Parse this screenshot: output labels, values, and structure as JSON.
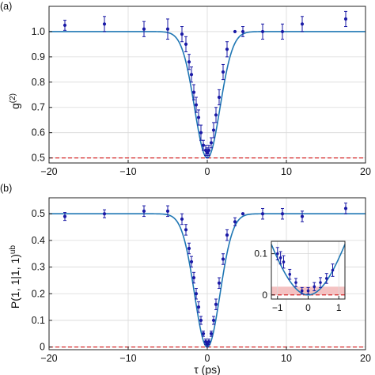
{
  "chart_data": [
    {
      "panel_label": "(a)",
      "type": "scatter",
      "ylabel": "g",
      "ylabel_superscript": "(2)",
      "xlim": [
        -20,
        20
      ],
      "ylim": [
        0.48,
        1.1
      ],
      "xticks": [
        -20,
        -10,
        0,
        10,
        20
      ],
      "yticks": [
        0.5,
        0.6,
        0.7,
        0.8,
        0.9,
        1.0
      ],
      "ytick_labels": [
        "0.5",
        "0.6",
        "0.7",
        "0.8",
        "0.9",
        "1.0"
      ],
      "grid": true,
      "reference_line": {
        "y": 0.5,
        "color": "#d62728",
        "style": "dashed"
      },
      "fit_curve": {
        "baseline": 1.0,
        "minimum": 0.5,
        "width_ps": 1.6,
        "color": "#1f77b4"
      },
      "points": [
        {
          "x": -18.0,
          "y": 1.025,
          "err": 0.02
        },
        {
          "x": -13.0,
          "y": 1.03,
          "err": 0.03
        },
        {
          "x": -8.0,
          "y": 1.01,
          "err": 0.03
        },
        {
          "x": -5.0,
          "y": 1.01,
          "err": 0.04
        },
        {
          "x": -3.2,
          "y": 0.99,
          "err": 0.03
        },
        {
          "x": -2.7,
          "y": 0.95,
          "err": 0.03
        },
        {
          "x": -2.3,
          "y": 0.88,
          "err": 0.03
        },
        {
          "x": -2.0,
          "y": 0.83,
          "err": 0.03
        },
        {
          "x": -1.7,
          "y": 0.76,
          "err": 0.03
        },
        {
          "x": -1.4,
          "y": 0.71,
          "err": 0.03
        },
        {
          "x": -1.1,
          "y": 0.66,
          "err": 0.03
        },
        {
          "x": -0.8,
          "y": 0.6,
          "err": 0.03
        },
        {
          "x": -0.5,
          "y": 0.55,
          "err": 0.02
        },
        {
          "x": -0.2,
          "y": 0.53,
          "err": 0.02
        },
        {
          "x": 0.0,
          "y": 0.52,
          "err": 0.02
        },
        {
          "x": 0.2,
          "y": 0.53,
          "err": 0.02
        },
        {
          "x": 0.5,
          "y": 0.56,
          "err": 0.02
        },
        {
          "x": 0.8,
          "y": 0.61,
          "err": 0.03
        },
        {
          "x": 1.1,
          "y": 0.67,
          "err": 0.03
        },
        {
          "x": 1.5,
          "y": 0.74,
          "err": 0.03
        },
        {
          "x": 2.0,
          "y": 0.84,
          "err": 0.03
        },
        {
          "x": 2.5,
          "y": 0.93,
          "err": 0.03
        },
        {
          "x": 3.5,
          "y": 1.0,
          "err": 0.0
        },
        {
          "x": 4.5,
          "y": 1.0,
          "err": 0.02
        },
        {
          "x": 7.0,
          "y": 1.0,
          "err": 0.03
        },
        {
          "x": 9.5,
          "y": 1.0,
          "err": 0.03
        },
        {
          "x": 12.0,
          "y": 1.03,
          "err": 0.03
        },
        {
          "x": 17.5,
          "y": 1.05,
          "err": 0.03
        }
      ]
    },
    {
      "panel_label": "(b)",
      "type": "scatter",
      "ylabel": "P(1, 1|1, 1)",
      "ylabel_superscript": "ub",
      "xlabel": "τ (ps)",
      "xlim": [
        -20,
        20
      ],
      "ylim": [
        -0.01,
        0.56
      ],
      "xticks": [
        -20,
        -10,
        0,
        10,
        20
      ],
      "yticks": [
        0,
        0.1,
        0.2,
        0.3,
        0.4,
        0.5
      ],
      "ytick_labels": [
        "0",
        "0.1",
        "0.2",
        "0.3",
        "0.4",
        "0.5"
      ],
      "grid": true,
      "reference_line": {
        "y": 0.0,
        "color": "#d62728",
        "style": "dashed"
      },
      "fit_curve": {
        "baseline": 0.5,
        "minimum": 0.0,
        "width_ps": 1.6,
        "color": "#1f77b4"
      },
      "points": [
        {
          "x": -18.0,
          "y": 0.49,
          "err": 0.015
        },
        {
          "x": -13.0,
          "y": 0.5,
          "err": 0.015
        },
        {
          "x": -8.0,
          "y": 0.51,
          "err": 0.02
        },
        {
          "x": -5.0,
          "y": 0.51,
          "err": 0.02
        },
        {
          "x": -3.2,
          "y": 0.48,
          "err": 0.02
        },
        {
          "x": -2.7,
          "y": 0.44,
          "err": 0.02
        },
        {
          "x": -2.3,
          "y": 0.37,
          "err": 0.02
        },
        {
          "x": -2.0,
          "y": 0.32,
          "err": 0.02
        },
        {
          "x": -1.7,
          "y": 0.26,
          "err": 0.02
        },
        {
          "x": -1.4,
          "y": 0.2,
          "err": 0.02
        },
        {
          "x": -1.1,
          "y": 0.15,
          "err": 0.02
        },
        {
          "x": -0.8,
          "y": 0.1,
          "err": 0.015
        },
        {
          "x": -0.5,
          "y": 0.05,
          "err": 0.01
        },
        {
          "x": -0.2,
          "y": 0.02,
          "err": 0.01
        },
        {
          "x": 0.0,
          "y": 0.01,
          "err": 0.01
        },
        {
          "x": 0.2,
          "y": 0.02,
          "err": 0.01
        },
        {
          "x": 0.5,
          "y": 0.05,
          "err": 0.01
        },
        {
          "x": 0.8,
          "y": 0.1,
          "err": 0.015
        },
        {
          "x": 1.1,
          "y": 0.16,
          "err": 0.02
        },
        {
          "x": 1.5,
          "y": 0.24,
          "err": 0.02
        },
        {
          "x": 2.0,
          "y": 0.33,
          "err": 0.02
        },
        {
          "x": 2.5,
          "y": 0.42,
          "err": 0.02
        },
        {
          "x": 3.5,
          "y": 0.47,
          "err": 0.015
        },
        {
          "x": 4.5,
          "y": 0.5,
          "err": 0.0
        },
        {
          "x": 7.0,
          "y": 0.5,
          "err": 0.02
        },
        {
          "x": 9.5,
          "y": 0.5,
          "err": 0.02
        },
        {
          "x": 12.0,
          "y": 0.49,
          "err": 0.02
        },
        {
          "x": 17.5,
          "y": 0.52,
          "err": 0.02
        }
      ],
      "inset": {
        "xlim": [
          -1.2,
          1.2
        ],
        "ylim": [
          -0.01,
          0.13
        ],
        "xticks": [
          -1,
          0,
          1
        ],
        "yticks": [
          0,
          0.1
        ],
        "ytick_labels": [
          "0",
          "0.1"
        ],
        "band": {
          "y0": 0.0,
          "y1": 0.02,
          "color": "#f4c2c2"
        },
        "reference_line": {
          "y": 0.0,
          "color": "#d62728",
          "style": "dashed"
        },
        "points": [
          {
            "x": -1.0,
            "y": 0.1,
            "err": 0.015
          },
          {
            "x": -0.9,
            "y": 0.09,
            "err": 0.015
          },
          {
            "x": -0.8,
            "y": 0.08,
            "err": 0.015
          },
          {
            "x": -0.6,
            "y": 0.05,
            "err": 0.012
          },
          {
            "x": -0.4,
            "y": 0.03,
            "err": 0.01
          },
          {
            "x": -0.2,
            "y": 0.01,
            "err": 0.008
          },
          {
            "x": 0.0,
            "y": 0.01,
            "err": 0.008
          },
          {
            "x": 0.2,
            "y": 0.02,
            "err": 0.01
          },
          {
            "x": 0.4,
            "y": 0.03,
            "err": 0.012
          },
          {
            "x": 0.6,
            "y": 0.04,
            "err": 0.012
          },
          {
            "x": 0.8,
            "y": 0.06,
            "err": 0.015
          }
        ]
      }
    }
  ]
}
